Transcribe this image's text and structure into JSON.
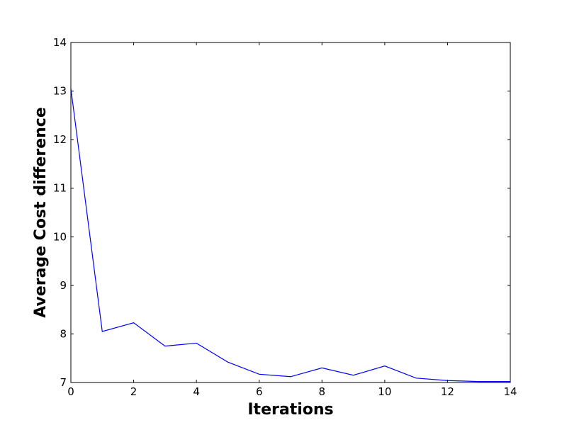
{
  "chart_data": {
    "type": "line",
    "xlabel": "Iterations",
    "ylabel": "Average Cost difference",
    "xlim": [
      0,
      14
    ],
    "ylim": [
      7,
      14
    ],
    "xticks": [
      0,
      2,
      4,
      6,
      8,
      10,
      12,
      14
    ],
    "yticks": [
      7,
      8,
      9,
      10,
      11,
      12,
      13,
      14
    ],
    "grid": false,
    "series": [
      {
        "color": "#0000ff",
        "x": [
          0,
          1,
          2,
          3,
          4,
          5,
          6,
          7,
          8,
          9,
          10,
          11,
          12,
          13,
          14
        ],
        "y": [
          13.05,
          8.05,
          8.23,
          7.75,
          7.81,
          7.42,
          7.17,
          7.12,
          7.3,
          7.15,
          7.34,
          7.09,
          7.04,
          7.02,
          7.02
        ]
      }
    ]
  }
}
